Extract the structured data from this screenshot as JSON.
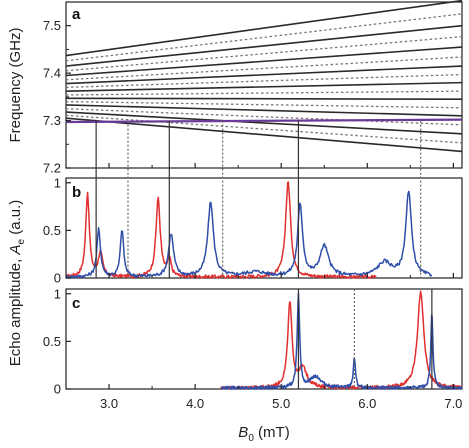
{
  "chart_data": [
    {
      "panel": "a",
      "type": "line",
      "ylabel": "Frequency (GHz)",
      "xlim": [
        2.5,
        7.1
      ],
      "ylim": [
        7.2,
        7.55
      ],
      "yticks": [
        "7.2",
        "7.3",
        "7.4",
        "7.5"
      ],
      "solid_lines": [
        {
          "x": [
            2.5,
            7.1
          ],
          "y": [
            7.437,
            7.553
          ]
        },
        {
          "x": [
            2.5,
            7.1
          ],
          "y": [
            7.415,
            7.5
          ]
        },
        {
          "x": [
            2.5,
            7.1
          ],
          "y": [
            7.395,
            7.455
          ]
        },
        {
          "x": [
            2.5,
            7.1
          ],
          "y": [
            7.378,
            7.415
          ]
        },
        {
          "x": [
            2.5,
            7.1
          ],
          "y": [
            7.362,
            7.38
          ]
        },
        {
          "x": [
            2.5,
            7.1
          ],
          "y": [
            7.347,
            7.345
          ]
        },
        {
          "x": [
            2.5,
            7.1
          ],
          "y": [
            7.333,
            7.31
          ]
        },
        {
          "x": [
            2.5,
            7.1
          ],
          "y": [
            7.318,
            7.272
          ]
        },
        {
          "x": [
            2.5,
            7.1
          ],
          "y": [
            7.305,
            7.235
          ]
        }
      ],
      "dotted_lines": [
        {
          "x": [
            2.5,
            7.1
          ],
          "y": [
            7.426,
            7.525
          ]
        },
        {
          "x": [
            2.5,
            7.1
          ],
          "y": [
            7.405,
            7.477
          ]
        },
        {
          "x": [
            2.5,
            7.1
          ],
          "y": [
            7.386,
            7.434
          ]
        },
        {
          "x": [
            2.5,
            7.1
          ],
          "y": [
            7.37,
            7.397
          ]
        },
        {
          "x": [
            2.5,
            7.1
          ],
          "y": [
            7.354,
            7.362
          ]
        },
        {
          "x": [
            2.5,
            7.1
          ],
          "y": [
            7.34,
            7.327
          ]
        },
        {
          "x": [
            2.5,
            7.1
          ],
          "y": [
            7.325,
            7.291
          ]
        },
        {
          "x": [
            2.5,
            7.1
          ],
          "y": [
            7.311,
            7.253
          ]
        }
      ],
      "cavity_line": {
        "color": "#6a3a96",
        "x": [
          2.5,
          7.1
        ],
        "y": [
          7.297,
          7.302
        ]
      }
    },
    {
      "panel": "b",
      "type": "line",
      "ylabel": "Echo amplitude, Ae (a.u.)",
      "xlim": [
        2.5,
        7.1
      ],
      "ylim": [
        0,
        1.05
      ],
      "yticks": [
        "0",
        "0.5",
        "1"
      ],
      "series": [
        {
          "color": "#e03030",
          "peaks": [
            [
              2.75,
              0.88,
              0.05
            ],
            [
              3.57,
              0.82,
              0.06
            ],
            [
              5.08,
              1.0,
              0.07
            ],
            [
              2.9,
              0.25,
              0.06
            ],
            [
              3.7,
              0.18,
              0.05
            ]
          ],
          "x_range": [
            2.5,
            6.1
          ]
        },
        {
          "color": "#2f4fa8",
          "peaks": [
            [
              2.88,
              0.5,
              0.05
            ],
            [
              3.15,
              0.5,
              0.045
            ],
            [
              3.72,
              0.45,
              0.07
            ],
            [
              4.18,
              0.78,
              0.08
            ],
            [
              5.22,
              0.75,
              0.07
            ],
            [
              5.5,
              0.32,
              0.12
            ],
            [
              6.48,
              0.88,
              0.08
            ],
            [
              6.2,
              0.15,
              0.2
            ],
            [
              4.7,
              0.05,
              0.3
            ]
          ],
          "x_range": [
            2.5,
            6.75
          ]
        }
      ]
    },
    {
      "panel": "c",
      "type": "line",
      "xlabel": "B0 (mT)",
      "xlim": [
        2.5,
        7.1
      ],
      "ylim": [
        0,
        1.05
      ],
      "yticks": [
        "0",
        "0.5",
        "1"
      ],
      "xticks": [
        "3.0",
        "4.0",
        "5.0",
        "6.0",
        "7.0"
      ],
      "series": [
        {
          "color": "#e03030",
          "peaks": [
            [
              5.1,
              0.88,
              0.06
            ],
            [
              6.62,
              1.0,
              0.09
            ],
            [
              5.25,
              0.2,
              0.12
            ]
          ],
          "x_range": [
            4.3,
            7.1
          ]
        },
        {
          "color": "#2f4fa8",
          "peaks": [
            [
              5.2,
              0.97,
              0.035
            ],
            [
              5.85,
              0.32,
              0.03
            ],
            [
              6.75,
              0.78,
              0.03
            ],
            [
              5.4,
              0.12,
              0.15
            ]
          ],
          "x_range": [
            4.3,
            7.1
          ]
        }
      ]
    }
  ],
  "connectors": {
    "solid_x": [
      2.85,
      3.7,
      5.2
    ],
    "dotted_x": [
      3.22,
      4.32,
      6.62
    ],
    "solid_c": [
      5.2,
      6.75
    ],
    "dotted_c": [
      5.85
    ]
  },
  "labels": {
    "panel_a": "a",
    "panel_b": "b",
    "panel_c": "c",
    "ylabel_a": "Frequency (GHz)",
    "ylabel_bc_main": "Echo amplitude, ",
    "ylabel_bc_sym": "A",
    "ylabel_bc_sub": "e",
    "ylabel_bc_unit": " (a.u.)",
    "xlabel_sym": "B",
    "xlabel_sub": "0",
    "xlabel_unit": " (mT)"
  }
}
